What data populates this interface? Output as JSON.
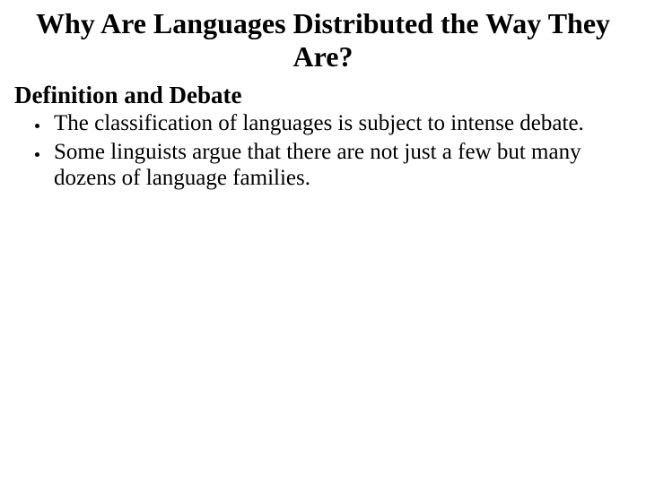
{
  "slide": {
    "title": "Why Are Languages Distributed the Way They Are?",
    "subheading": "Definition and Debate",
    "bullets": [
      "The classification of languages is subject to intense debate.",
      "Some linguists argue that there are not just a few but many dozens of language families."
    ]
  },
  "style": {
    "background_color": "#ffffff",
    "text_color": "#000000",
    "title_fontsize": 32,
    "subheading_fontsize": 27,
    "body_fontsize": 25,
    "font_family": "Georgia, serif"
  }
}
